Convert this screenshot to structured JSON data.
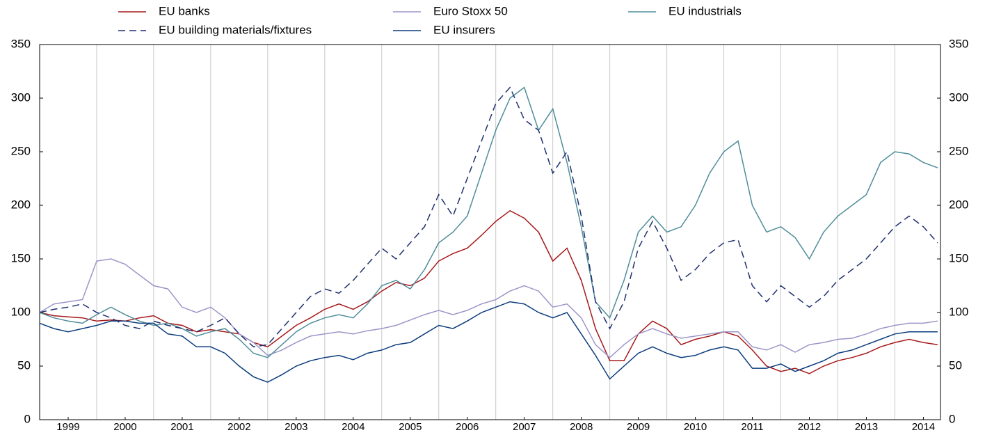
{
  "chart_data": {
    "type": "line",
    "x": [
      1999,
      1999.25,
      1999.5,
      1999.75,
      2000,
      2000.25,
      2000.5,
      2000.75,
      2001,
      2001.25,
      2001.5,
      2001.75,
      2002,
      2002.25,
      2002.5,
      2002.75,
      2003,
      2003.25,
      2003.5,
      2003.75,
      2004,
      2004.25,
      2004.5,
      2004.75,
      2005,
      2005.25,
      2005.5,
      2005.75,
      2006,
      2006.25,
      2006.5,
      2006.75,
      2007,
      2007.25,
      2007.5,
      2007.75,
      2008,
      2008.25,
      2008.5,
      2008.75,
      2009,
      2009.25,
      2009.5,
      2009.75,
      2010,
      2010.25,
      2010.5,
      2010.75,
      2011,
      2011.25,
      2011.5,
      2011.75,
      2012,
      2012.25,
      2012.5,
      2012.75,
      2013,
      2013.25,
      2013.5,
      2013.75,
      2014,
      2014.25,
      2014.5,
      2014.75
    ],
    "series": [
      {
        "name": "EU banks",
        "color": "#a6191a",
        "values": [
          100,
          97,
          96,
          95,
          92,
          93,
          92,
          95,
          97,
          90,
          88,
          82,
          84,
          82,
          80,
          72,
          68,
          78,
          88,
          95,
          103,
          108,
          103,
          110,
          120,
          128,
          125,
          132,
          148,
          155,
          160,
          172,
          185,
          195,
          188,
          175,
          148,
          160,
          130,
          85,
          55,
          55,
          80,
          92,
          85,
          70,
          75,
          78,
          82,
          78,
          65,
          50,
          45,
          48,
          43,
          50,
          55,
          58,
          62,
          68,
          72,
          75,
          72,
          70
        ]
      },
      {
        "name": "Euro Stoxx 50",
        "color": "#9b96c8",
        "values": [
          100,
          108,
          110,
          112,
          148,
          150,
          145,
          135,
          125,
          122,
          105,
          100,
          105,
          95,
          80,
          72,
          60,
          65,
          72,
          78,
          80,
          82,
          80,
          83,
          85,
          88,
          93,
          98,
          102,
          98,
          102,
          108,
          112,
          120,
          125,
          120,
          105,
          108,
          95,
          70,
          58,
          70,
          80,
          85,
          80,
          76,
          78,
          80,
          82,
          82,
          68,
          65,
          70,
          63,
          70,
          72,
          75,
          76,
          80,
          85,
          88,
          90,
          90,
          92
        ]
      },
      {
        "name": "EU industrials",
        "color": "#4e8d9a",
        "values": [
          100,
          95,
          92,
          90,
          98,
          105,
          98,
          92,
          88,
          90,
          85,
          78,
          82,
          85,
          75,
          62,
          58,
          70,
          82,
          90,
          95,
          98,
          95,
          108,
          125,
          130,
          122,
          140,
          165,
          175,
          190,
          230,
          270,
          300,
          310,
          270,
          290,
          240,
          180,
          110,
          95,
          130,
          175,
          190,
          175,
          180,
          200,
          230,
          250,
          260,
          200,
          175,
          180,
          170,
          150,
          175,
          190,
          200,
          210,
          240,
          250,
          248,
          240,
          235
        ]
      },
      {
        "name": "EU building materials/fixtures",
        "color": "#1f2f6e",
        "dashed": true,
        "values": [
          100,
          103,
          105,
          108,
          100,
          95,
          88,
          85,
          92,
          88,
          85,
          82,
          88,
          95,
          80,
          68,
          70,
          85,
          100,
          115,
          122,
          118,
          130,
          145,
          160,
          150,
          165,
          180,
          210,
          190,
          225,
          260,
          295,
          310,
          280,
          270,
          230,
          250,
          190,
          110,
          85,
          110,
          160,
          185,
          160,
          130,
          140,
          155,
          165,
          168,
          125,
          110,
          125,
          115,
          105,
          115,
          130,
          140,
          150,
          165,
          180,
          190,
          180,
          165
        ]
      },
      {
        "name": "EU insurers",
        "color": "#0b3c7d",
        "values": [
          90,
          85,
          82,
          85,
          88,
          92,
          92,
          90,
          90,
          80,
          78,
          68,
          68,
          62,
          50,
          40,
          35,
          42,
          50,
          55,
          58,
          60,
          56,
          62,
          65,
          70,
          72,
          80,
          88,
          85,
          92,
          100,
          105,
          110,
          108,
          100,
          95,
          100,
          80,
          60,
          38,
          50,
          62,
          68,
          62,
          58,
          60,
          65,
          68,
          65,
          48,
          48,
          52,
          45,
          50,
          55,
          62,
          65,
          70,
          75,
          80,
          82,
          82,
          82
        ]
      }
    ],
    "xlim": [
      1999,
      2014.8
    ],
    "xticks": [
      {
        "value": 1999.5,
        "label": "1999"
      },
      {
        "value": 2000.5,
        "label": "2000"
      },
      {
        "value": 2001.5,
        "label": "2001"
      },
      {
        "value": 2002.5,
        "label": "2002"
      },
      {
        "value": 2003.5,
        "label": "2003"
      },
      {
        "value": 2004.5,
        "label": "2004"
      },
      {
        "value": 2005.5,
        "label": "2005"
      },
      {
        "value": 2006.5,
        "label": "2006"
      },
      {
        "value": 2007.5,
        "label": "2007"
      },
      {
        "value": 2008.5,
        "label": "2008"
      },
      {
        "value": 2009.5,
        "label": "2009"
      },
      {
        "value": 2010.5,
        "label": "2010"
      },
      {
        "value": 2011.5,
        "label": "2011"
      },
      {
        "value": 2012.5,
        "label": "2012"
      },
      {
        "value": 2013.5,
        "label": "2013"
      },
      {
        "value": 2014.5,
        "label": "2014"
      }
    ],
    "ylim": [
      0,
      350
    ],
    "yticks": [
      0,
      50,
      100,
      150,
      200,
      250,
      300,
      350
    ],
    "grid": true
  }
}
